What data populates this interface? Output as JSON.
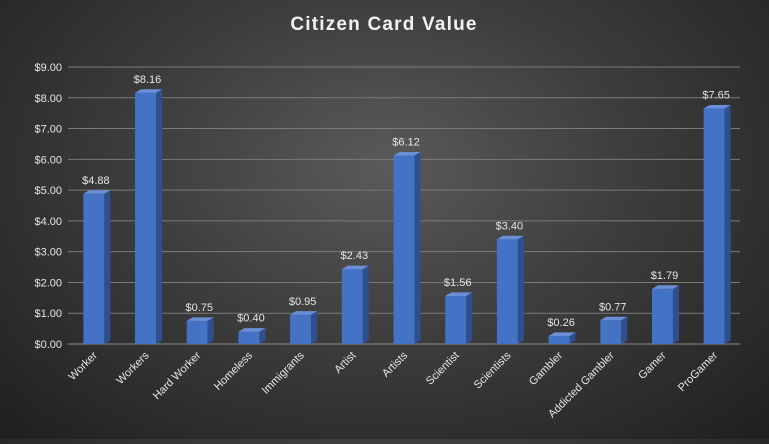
{
  "chart_data": {
    "type": "bar",
    "title": "Citizen Card Value",
    "xlabel": "",
    "ylabel": "",
    "categories": [
      "Worker",
      "Workers",
      "Hard Worker",
      "Homeless",
      "Immigrants",
      "Artist",
      "Artists",
      "Scientist",
      "Scientists",
      "Gambler",
      "Addicted Gambler",
      "Gamer",
      "ProGamer"
    ],
    "values": [
      4.88,
      8.16,
      0.75,
      0.4,
      0.95,
      2.43,
      6.12,
      1.56,
      3.4,
      0.26,
      0.77,
      1.79,
      7.65
    ],
    "data_labels": [
      "$4.88",
      "$8.16",
      "$0.75",
      "$0.40",
      "$0.95",
      "$2.43",
      "$6.12",
      "$1.56",
      "$3.40",
      "$0.26",
      "$0.77",
      "$1.79",
      "$7.65"
    ],
    "ylim": [
      0,
      9
    ],
    "y_ticks": [
      0,
      1,
      2,
      3,
      4,
      5,
      6,
      7,
      8,
      9
    ],
    "y_tick_labels": [
      "$0.00",
      "$1.00",
      "$2.00",
      "$3.00",
      "$4.00",
      "$5.00",
      "$6.00",
      "$7.00",
      "$8.00",
      "$9.00"
    ],
    "grid": true,
    "legend": "none",
    "style": "3d-column",
    "colors": {
      "bar_front": "#4472c4",
      "bar_side": "#2f4f8f",
      "bar_top": "#6a8fd6"
    }
  }
}
